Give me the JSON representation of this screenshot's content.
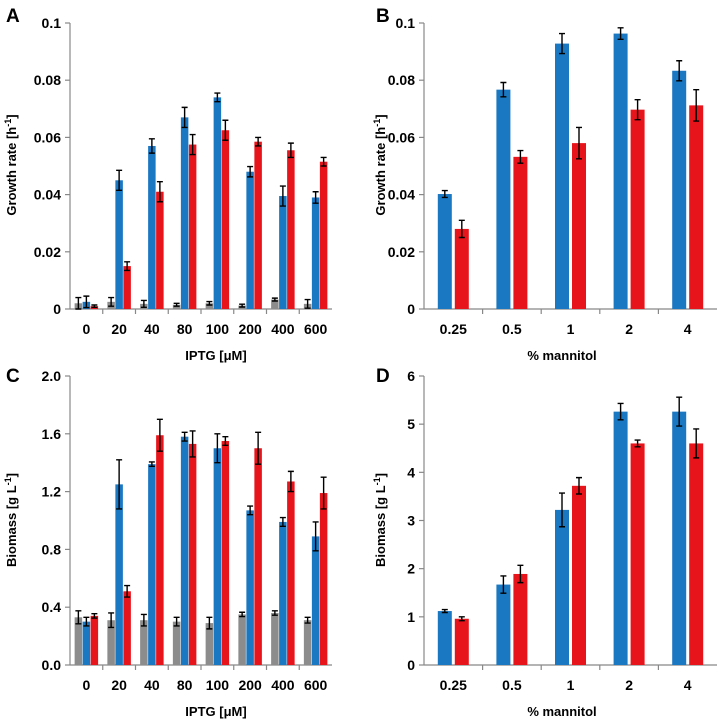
{
  "colors": {
    "gray": "#8c8c8c",
    "blue": "#1a78c2",
    "red": "#e8141c"
  },
  "chart_data": [
    {
      "panel": "A",
      "type": "bar",
      "xlabel": "IPTG [μM]",
      "ylabel": "Growth rate [h",
      "ylabel_sup": "-1",
      "ylabel_end": "]",
      "ylim": [
        0,
        0.1
      ],
      "yticks": [
        0,
        0.02,
        0.04,
        0.06,
        0.08,
        0.1
      ],
      "ytick_labels": [
        "0",
        "0.02",
        "0.04",
        "0.06",
        "0.08",
        "0.1"
      ],
      "categories": [
        "0",
        "20",
        "40",
        "80",
        "100",
        "200",
        "400",
        "600"
      ],
      "series": [
        {
          "name": "gray",
          "color": "gray",
          "values": [
            0.002,
            0.0025,
            0.0018,
            0.0015,
            0.002,
            0.0012,
            0.0033,
            0.0018
          ],
          "errors": [
            0.002,
            0.0015,
            0.0012,
            0.0005,
            0.0006,
            0.0005,
            0.0005,
            0.0015
          ]
        },
        {
          "name": "blue",
          "color": "blue",
          "values": [
            0.0025,
            0.045,
            0.057,
            0.067,
            0.074,
            0.048,
            0.0395,
            0.039
          ],
          "errors": [
            0.002,
            0.0035,
            0.0025,
            0.0035,
            0.0015,
            0.0018,
            0.0035,
            0.002
          ]
        },
        {
          "name": "red",
          "color": "red",
          "values": [
            0.001,
            0.015,
            0.041,
            0.0575,
            0.0625,
            0.0585,
            0.0555,
            0.0515
          ],
          "errors": [
            0.0004,
            0.0015,
            0.0035,
            0.0035,
            0.0035,
            0.0015,
            0.0025,
            0.0015
          ]
        }
      ]
    },
    {
      "panel": "B",
      "type": "bar",
      "xlabel": "% mannitol",
      "ylabel": "Growth rate [h",
      "ylabel_sup": "-1",
      "ylabel_end": "]",
      "ylim": [
        0,
        0.1
      ],
      "yticks": [
        0,
        0.02,
        0.04,
        0.06,
        0.08,
        0.1
      ],
      "ytick_labels": [
        "0",
        "0.02",
        "0.04",
        "0.06",
        "0.08",
        "0.1"
      ],
      "categories": [
        "0.25",
        "0.5",
        "1",
        "2",
        "4"
      ],
      "series": [
        {
          "name": "blue",
          "color": "blue",
          "values": [
            0.0402,
            0.0767,
            0.0928,
            0.0963,
            0.0833
          ],
          "errors": [
            0.0012,
            0.0025,
            0.0035,
            0.002,
            0.0035
          ]
        },
        {
          "name": "red",
          "color": "red",
          "values": [
            0.028,
            0.0532,
            0.058,
            0.0697,
            0.0712
          ],
          "errors": [
            0.003,
            0.0022,
            0.0055,
            0.0035,
            0.0055
          ]
        }
      ]
    },
    {
      "panel": "C",
      "type": "bar",
      "xlabel": "IPTG [μM]",
      "ylabel": "Biomass [g L",
      "ylabel_sup": "-1",
      "ylabel_end": "]",
      "ylim": [
        0,
        2.0
      ],
      "yticks": [
        0,
        0.4,
        0.8,
        1.2,
        1.6,
        2.0
      ],
      "ytick_labels": [
        "0.0",
        "0.4",
        "0.8",
        "1.2",
        "1.6",
        "2.0"
      ],
      "categories": [
        "0",
        "20",
        "40",
        "80",
        "100",
        "200",
        "400",
        "600"
      ],
      "series": [
        {
          "name": "gray",
          "color": "gray",
          "values": [
            0.33,
            0.31,
            0.31,
            0.3,
            0.29,
            0.35,
            0.36,
            0.31
          ],
          "errors": [
            0.045,
            0.05,
            0.04,
            0.03,
            0.04,
            0.015,
            0.015,
            0.02
          ]
        },
        {
          "name": "blue",
          "color": "blue",
          "values": [
            0.3,
            1.25,
            1.39,
            1.58,
            1.5,
            1.07,
            0.99,
            0.89
          ],
          "errors": [
            0.03,
            0.17,
            0.015,
            0.03,
            0.1,
            0.03,
            0.03,
            0.1
          ]
        },
        {
          "name": "red",
          "color": "red",
          "values": [
            0.34,
            0.51,
            1.59,
            1.53,
            1.55,
            1.5,
            1.27,
            1.19
          ],
          "errors": [
            0.015,
            0.04,
            0.11,
            0.09,
            0.03,
            0.11,
            0.07,
            0.11
          ]
        }
      ]
    },
    {
      "panel": "D",
      "type": "bar",
      "xlabel": "% mannitol",
      "ylabel": "Biomass [g L",
      "ylabel_sup": "-1",
      "ylabel_end": "]",
      "ylim": [
        0,
        6
      ],
      "yticks": [
        0,
        1,
        2,
        3,
        4,
        5,
        6
      ],
      "ytick_labels": [
        "0",
        "1",
        "2",
        "3",
        "4",
        "5",
        "6"
      ],
      "categories": [
        "0.25",
        "0.5",
        "1",
        "2",
        "4"
      ],
      "series": [
        {
          "name": "blue",
          "color": "blue",
          "values": [
            1.12,
            1.67,
            3.22,
            5.26,
            5.26
          ],
          "errors": [
            0.03,
            0.18,
            0.35,
            0.17,
            0.3
          ]
        },
        {
          "name": "red",
          "color": "red",
          "values": [
            0.96,
            1.89,
            3.72,
            4.6,
            4.6
          ],
          "errors": [
            0.04,
            0.18,
            0.17,
            0.07,
            0.3
          ]
        }
      ]
    }
  ]
}
